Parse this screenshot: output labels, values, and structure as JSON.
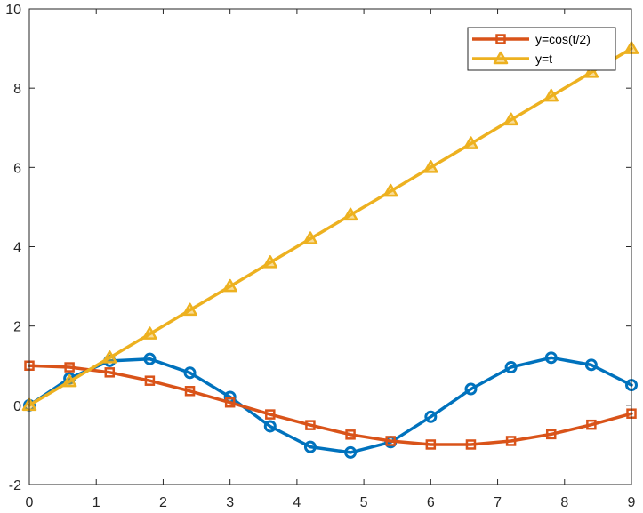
{
  "chart_data": {
    "type": "line",
    "title": "",
    "xlabel": "",
    "ylabel": "",
    "xlim": [
      0,
      9
    ],
    "ylim": [
      -2,
      10
    ],
    "xticks": [
      0,
      1,
      2,
      3,
      4,
      5,
      6,
      7,
      8,
      9
    ],
    "yticks": [
      -2,
      0,
      2,
      4,
      6,
      8,
      10
    ],
    "xtick_labels": [
      "0",
      "1",
      "2",
      "3",
      "4",
      "5",
      "6",
      "7",
      "8",
      "9"
    ],
    "ytick_labels": [
      "-2",
      "0",
      "2",
      "4",
      "6",
      "8",
      "10"
    ],
    "grid": false,
    "legend_position": "top-right",
    "series": [
      {
        "name": "unlabeled blue series",
        "in_legend": false,
        "color": "#0072BD",
        "marker": "circle",
        "x": [
          0,
          0.6,
          1.2,
          1.8,
          2.4,
          3.0,
          3.6,
          4.2,
          4.8,
          5.4,
          6.0,
          6.6,
          7.2,
          7.8,
          8.4,
          9.0
        ],
        "values": [
          0,
          0.68,
          1.12,
          1.17,
          0.82,
          0.21,
          -0.53,
          -1.05,
          -1.19,
          -0.93,
          -0.29,
          0.41,
          0.96,
          1.2,
          1.02,
          0.51
        ]
      },
      {
        "name": "y=cos(t/2)",
        "in_legend": true,
        "color": "#D95319",
        "marker": "square",
        "x": [
          0,
          0.6,
          1.2,
          1.8,
          2.4,
          3.0,
          3.6,
          4.2,
          4.8,
          5.4,
          6.0,
          6.6,
          7.2,
          7.8,
          8.4,
          9.0
        ],
        "values": [
          1.0,
          0.96,
          0.83,
          0.62,
          0.36,
          0.07,
          -0.23,
          -0.5,
          -0.74,
          -0.9,
          -0.99,
          -0.99,
          -0.9,
          -0.73,
          -0.49,
          -0.21
        ]
      },
      {
        "name": "y=t",
        "in_legend": true,
        "color": "#EDB120",
        "marker": "triangle",
        "x": [
          0,
          0.6,
          1.2,
          1.8,
          2.4,
          3.0,
          3.6,
          4.2,
          4.8,
          5.4,
          6.0,
          6.6,
          7.2,
          7.8,
          8.4,
          9.0
        ],
        "values": [
          0,
          0.6,
          1.2,
          1.8,
          2.4,
          3.0,
          3.6,
          4.2,
          4.8,
          5.4,
          6.0,
          6.6,
          7.2,
          7.8,
          8.4,
          9.0
        ]
      }
    ]
  }
}
